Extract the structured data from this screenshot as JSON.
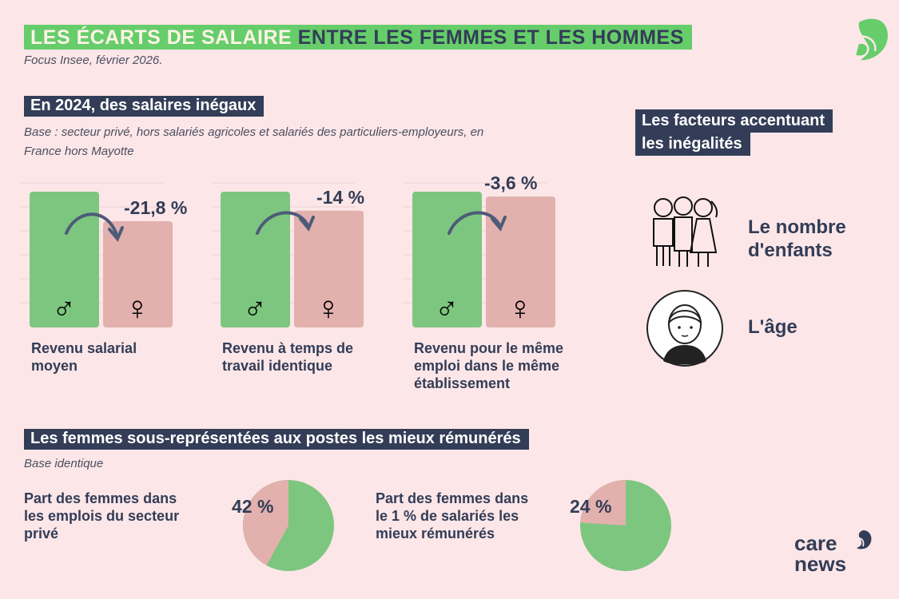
{
  "title": {
    "part1": "LES ÉCARTS DE SALAIRE",
    "part2": "ENTRE LES FEMMES ET LES HOMMES"
  },
  "source": "Focus Insee, février 2026.",
  "section1": {
    "heading": "En 2024, des salaires inégaux",
    "base_line1": "Base : secteur privé, hors salariés agricoles et salariés des particuliers-employeurs, en",
    "base_line2": "France hors Mayotte"
  },
  "section2": {
    "heading": "Les femmes sous-représentées aux postes les mieux rémunérés",
    "base": "Base identique"
  },
  "factors": {
    "heading_line1": "Les facteurs accentuant",
    "heading_line2": "les inégalités",
    "items": [
      {
        "label_line1": "Le nombre",
        "label_line2": "d'enfants",
        "icon": "children-group-icon"
      },
      {
        "label_line1": "L'âge",
        "label_line2": "",
        "icon": "woman-face-icon"
      }
    ]
  },
  "colors": {
    "background": "#fce6e8",
    "men": "#7dc67f",
    "women": "#e2b0ad",
    "navy": "#333d57",
    "brand_green": "#66cd6a"
  },
  "logo": {
    "line1": "care",
    "line2": "news"
  },
  "chart_data": [
    {
      "type": "bar",
      "categories": [
        "♂",
        "♀"
      ],
      "values": [
        100,
        78.2
      ],
      "gap_label": "-21,8 %",
      "label_line1": "Revenu salarial",
      "label_line2": "moyen",
      "label_line3": ""
    },
    {
      "type": "bar",
      "categories": [
        "♂",
        "♀"
      ],
      "values": [
        100,
        86
      ],
      "gap_label": "-14 %",
      "label_line1": "Revenu à temps de",
      "label_line2": "travail identique",
      "label_line3": ""
    },
    {
      "type": "bar",
      "categories": [
        "♂",
        "♀"
      ],
      "values": [
        100,
        96.4
      ],
      "gap_label": "-3,6 %",
      "label_line1": "Revenu pour le même",
      "label_line2": "emploi dans le même",
      "label_line3": "établissement"
    },
    {
      "type": "pie",
      "women_share": 42,
      "value_label": "42 %",
      "label_line1": "Part des femmes dans",
      "label_line2": "les emplois du secteur",
      "label_line3": "privé"
    },
    {
      "type": "pie",
      "women_share": 24,
      "value_label": "24 %",
      "label_line1": "Part des femmes dans",
      "label_line2": "le 1 % de salariés les",
      "label_line3": "mieux rémunérés"
    }
  ]
}
